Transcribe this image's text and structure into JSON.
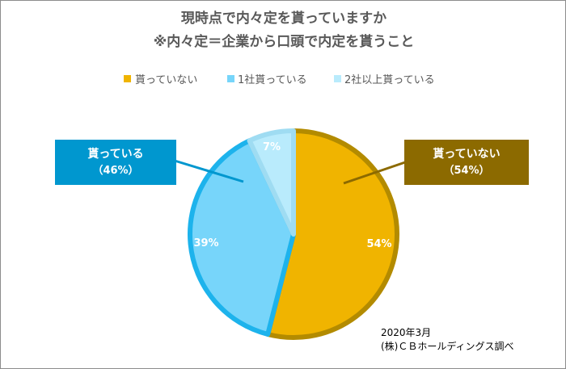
{
  "chart_data": {
    "type": "pie",
    "title": "現時点で内々定を貰っていますか",
    "subtitle": "※内々定＝企業から口頭で内定を貰うこと",
    "slices": [
      {
        "name": "貰っていない",
        "value": 54,
        "label": "54%",
        "color": "#f0b400",
        "border": "#b38b00"
      },
      {
        "name": "1社貰っている",
        "value": 39,
        "label": "39%",
        "color": "#77d5fa",
        "border": "#1db3ec"
      },
      {
        "name": "2社以上貰っている",
        "value": 7,
        "label": "7%",
        "color": "#b9ebfc",
        "border": "#9fdcf2"
      }
    ],
    "legend_position": "top",
    "callouts": [
      {
        "label": "貰っていない",
        "pct": "（54%）",
        "color": "#8c6a00"
      },
      {
        "label": "貰っている",
        "pct": "（46%）",
        "color": "#0097cf"
      }
    ]
  },
  "source": {
    "date": "2020年3月",
    "org": "(株)ＣＢホールディングス調べ"
  }
}
